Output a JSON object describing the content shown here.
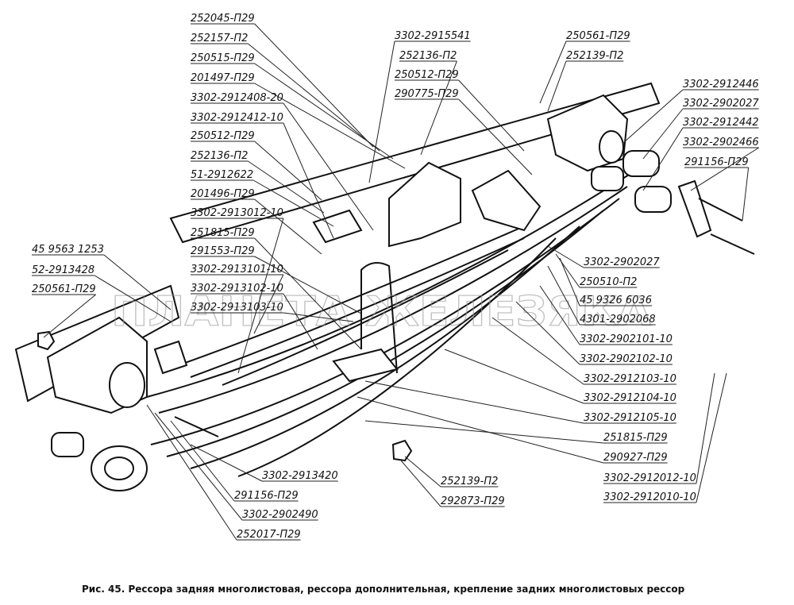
{
  "labels": [
    "252045-П29",
    "252157-П2",
    "250515-П29",
    "201497-П29",
    "3302-2912408-20",
    "3302-2912412-10",
    "250512-П29",
    "252136-П2",
    "51-2912622",
    "201496-П29",
    "3302-2913012-10",
    "251815-П29",
    "291553-П29",
    "3302-2913101-10",
    "3302-2913102-10",
    "3302-2913103-10",
    "45 9563 1253",
    "52-2913428",
    "250561-П29",
    "3302-2915541",
    "252136-П2",
    "250512-П29",
    "290775-П29",
    "250561-П29",
    "252139-П2",
    "3302-2912446",
    "3302-2902027",
    "3302-2912442",
    "3302-2902466",
    "291156-П29",
    "3302-2902027",
    "250510-П2",
    "45 9326 6036",
    "4301-2902068",
    "3302-2902101-10",
    "3302-2902102-10",
    "3302-2912103-10",
    "3302-2912104-10",
    "3302-2912105-10",
    "251815-П29",
    "290927-П29",
    "3302-2912012-10",
    "3302-2912010-10",
    "252139-П2",
    "292873-П29",
    "3302-2913420",
    "291156-П29",
    "3302-2902490",
    "252017-П29"
  ],
  "watermark": "ПЛАНЕТА ЖЕЛЕЗЯКА",
  "caption": "Рис. 45. Рессора задняя многолистовая, рессора дополнительная, крепление задних многолистовых рессор"
}
